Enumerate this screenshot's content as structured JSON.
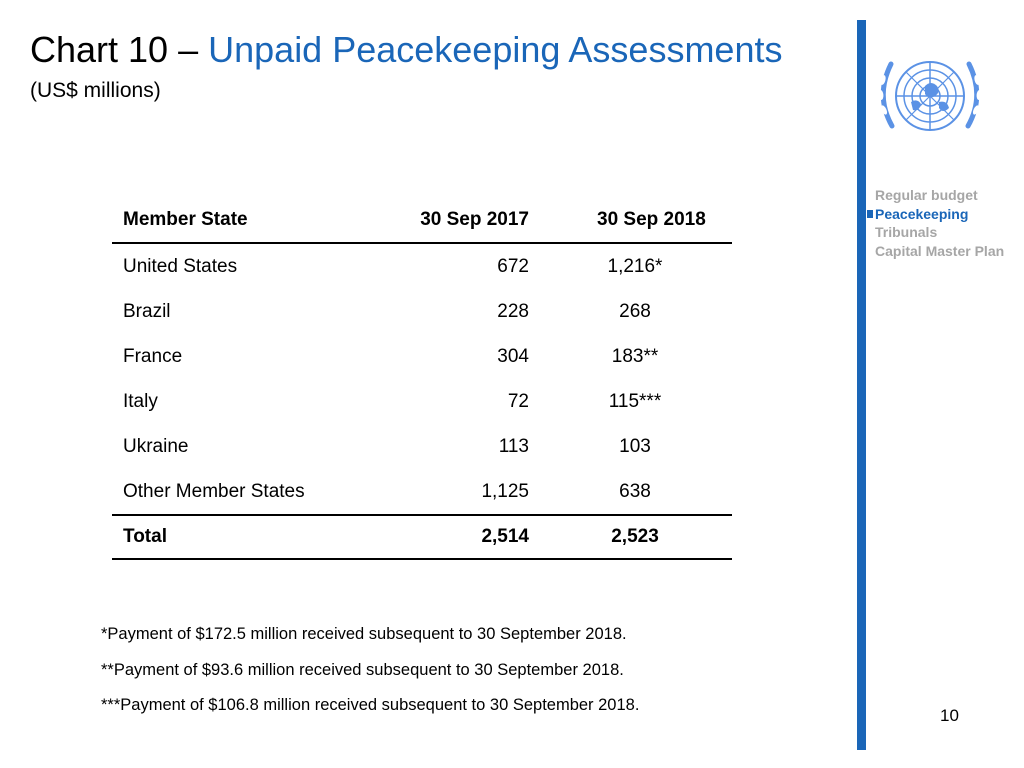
{
  "header": {
    "title_lead": "Chart 10 –",
    "title_accent": "Unpaid Peacekeeping Assessments",
    "subtitle": "(US$ millions)"
  },
  "nav": {
    "items": [
      {
        "label": "Regular budget",
        "active": false
      },
      {
        "label": "Peacekeeping",
        "active": true
      },
      {
        "label": "Tribunals",
        "active": false
      },
      {
        "label": "Capital Master Plan",
        "active": false
      }
    ]
  },
  "table": {
    "headers": [
      "Member State",
      "30 Sep 2017",
      "30 Sep 2018"
    ],
    "rows": [
      [
        "United States",
        "672",
        "1,216*"
      ],
      [
        "Brazil",
        "228",
        "268"
      ],
      [
        "France",
        "304",
        "183**"
      ],
      [
        "Italy",
        "72",
        "115***"
      ],
      [
        "Ukraine",
        "113",
        "103"
      ],
      [
        "Other Member States",
        "1,125",
        "638"
      ]
    ],
    "total": [
      "Total",
      "2,514",
      "2,523"
    ]
  },
  "footnotes": [
    "*Payment of $172.5 million received subsequent to 30 September 2018.",
    "**Payment of $93.6 million received subsequent to 30 September 2018.",
    "***Payment of $106.8 million received subsequent to 30 September 2018."
  ],
  "page_number": "10",
  "colors": {
    "accent": "#1a66b8",
    "nav_inactive": "#a6a6a6",
    "un_logo": "#5b92e5"
  },
  "icons": [
    "un-emblem-icon"
  ]
}
